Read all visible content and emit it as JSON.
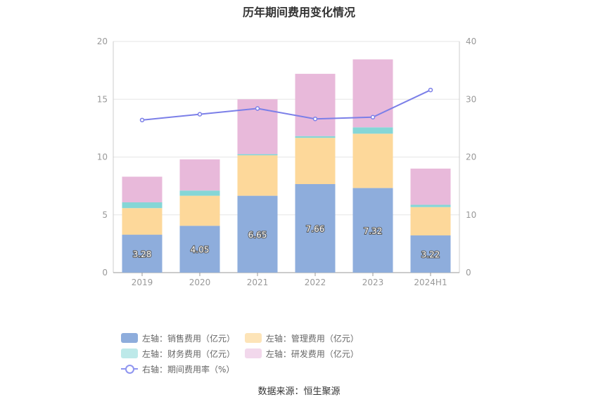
{
  "title": "历年期间费用变化情况",
  "source": "数据来源：恒生聚源",
  "chart_data": {
    "type": "bar",
    "stacked": true,
    "categories": [
      "2019",
      "2020",
      "2021",
      "2022",
      "2023",
      "2024H1"
    ],
    "left_axis": {
      "ylim": [
        0,
        20
      ],
      "ticks": [
        "0",
        "5",
        "10",
        "15",
        "20"
      ]
    },
    "right_axis": {
      "ylim": [
        0,
        40
      ],
      "ticks": [
        "0",
        "10",
        "20",
        "30",
        "40"
      ]
    },
    "series": [
      {
        "name": "左轴：销售费用（亿元）",
        "axis": "left",
        "color": "#8eaddc",
        "values": [
          3.28,
          4.05,
          6.65,
          7.66,
          7.32,
          3.22
        ],
        "labels": [
          "3.28",
          "4.05",
          "6.65",
          "7.66",
          "7.32",
          "3.22"
        ]
      },
      {
        "name": "左轴：管理费用（亿元）",
        "axis": "left",
        "color": "#fdd89a",
        "values": [
          2.3,
          2.6,
          3.5,
          4.0,
          4.7,
          2.45
        ]
      },
      {
        "name": "左轴：财务费用（亿元）",
        "axis": "left",
        "color": "#85d6d6",
        "values": [
          0.5,
          0.45,
          0.1,
          0.15,
          0.55,
          0.2
        ]
      },
      {
        "name": "左轴：研发费用（亿元）",
        "axis": "left",
        "color": "#e8b9da",
        "values": [
          2.22,
          2.7,
          4.75,
          5.39,
          5.88,
          3.13
        ]
      },
      {
        "name": "右轴：期间费用率（%）",
        "axis": "right",
        "type": "line",
        "color": "#7b7fe8",
        "values": [
          26.4,
          27.4,
          28.4,
          26.6,
          26.9,
          31.6
        ]
      }
    ],
    "legend_position": "bottom",
    "grid": true
  },
  "legend": {
    "sales": "左轴：销售费用（亿元）",
    "admin": "左轴：管理费用（亿元）",
    "finance": "左轴：财务费用（亿元）",
    "rnd": "左轴：研发费用（亿元）",
    "rate": "右轴：期间费用率（%）"
  },
  "colors": {
    "sales": "#8eaddc",
    "admin": "#fde4b8",
    "finance": "#bde9e9",
    "rnd": "#f2d8ec",
    "rate": "#8f95f0"
  }
}
